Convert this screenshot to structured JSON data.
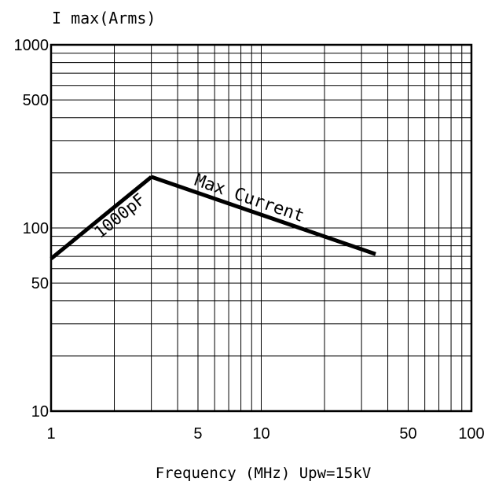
{
  "chart_data": {
    "type": "line",
    "ylabel": "I max(Arms)",
    "xlabel": "Frequency (MHz) Upw=15kV",
    "x_scale": "log",
    "y_scale": "log",
    "xlim": [
      1,
      100
    ],
    "ylim": [
      10,
      1000
    ],
    "x_ticks": [
      1,
      5,
      10,
      50,
      100
    ],
    "y_ticks": [
      10,
      50,
      100,
      500,
      1000
    ],
    "x_tick_labels": [
      "1",
      "5",
      "10",
      "50",
      "100"
    ],
    "y_tick_labels": [
      "10",
      "50",
      "100",
      "500",
      "1000"
    ],
    "grid": true,
    "line_color": "#000000",
    "series": [
      {
        "name": "1000pF",
        "x": [
          1,
          3
        ],
        "y": [
          68,
          190
        ]
      },
      {
        "name": "Max Current",
        "x": [
          3,
          35
        ],
        "y": [
          190,
          72
        ]
      }
    ]
  }
}
